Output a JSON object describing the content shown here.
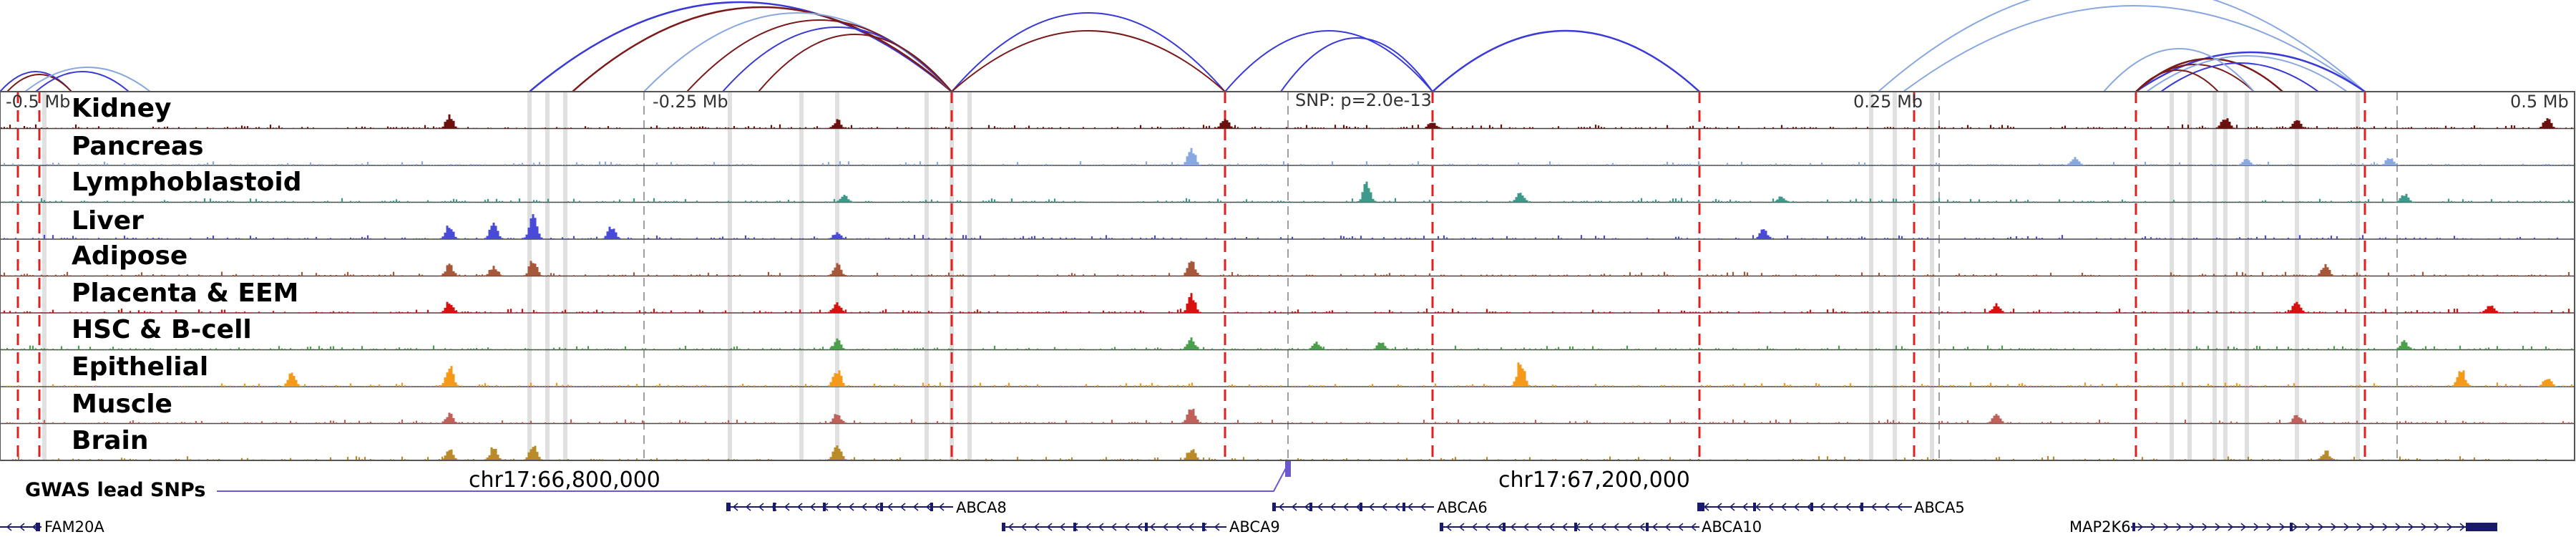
{
  "browser": {
    "axis_ticks": [
      {
        "label": "-0.5 Mb"
      },
      {
        "label": "-0.25 Mb"
      },
      {
        "label": "SNP: p=2.0e-13"
      },
      {
        "label": "0.25 Mb"
      },
      {
        "label": "0.5 Mb"
      }
    ],
    "tracks": [
      {
        "name": "Kidney",
        "color": "#6b0f0f"
      },
      {
        "name": "Pancreas",
        "color": "#8aa8e0"
      },
      {
        "name": "Lymphoblastoid",
        "color": "#3d9a8a"
      },
      {
        "name": "Liver",
        "color": "#4a4ad8"
      },
      {
        "name": "Adipose",
        "color": "#a8583a"
      },
      {
        "name": "Placenta & EEM",
        "color": "#d81010"
      },
      {
        "name": "HSC & B-cell",
        "color": "#4aa04a"
      },
      {
        "name": "Epithelial",
        "color": "#f59a18"
      },
      {
        "name": "Muscle",
        "color": "#c0605a"
      },
      {
        "name": "Brain",
        "color": "#b88a28"
      }
    ],
    "coordinates": [
      {
        "label": "chr17:66,800,000"
      },
      {
        "label": "chr17:67,200,000"
      }
    ],
    "gwas_label": "GWAS lead SNPs",
    "gwas_color": "#6a5acd",
    "genes": [
      {
        "name": "ABCA8",
        "strand": "-"
      },
      {
        "name": "ABCA6",
        "strand": "-"
      },
      {
        "name": "ABCA5",
        "strand": "-"
      },
      {
        "name": "FAM20A",
        "strand": "-"
      },
      {
        "name": "ABCA9",
        "strand": "-"
      },
      {
        "name": "ABCA10",
        "strand": "-"
      },
      {
        "name": "MAP2K6",
        "strand": "+"
      }
    ],
    "colors": {
      "loop_dark": "#7a1a1a",
      "loop_blue": "#3a3ad8",
      "loop_light": "#8aa8e0",
      "highlight_red": "#e02020",
      "highlight_grey": "#c8c8c8",
      "gene_color": "#1a1a6a"
    }
  }
}
